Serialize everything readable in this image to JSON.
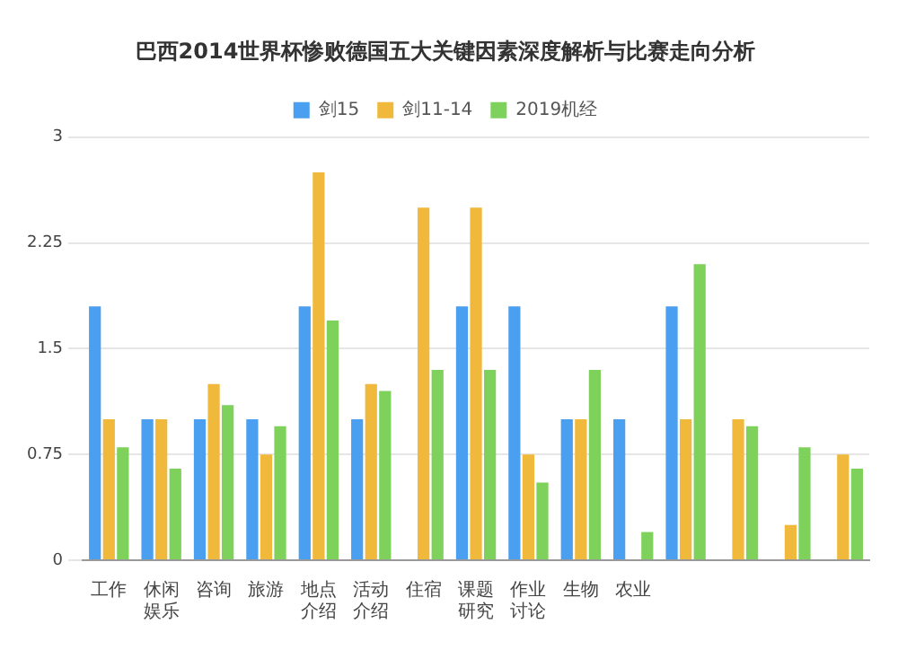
{
  "chart_data": {
    "type": "bar",
    "title": "巴西2014世界杯惨败德国五大关键因素深度解析与比赛走向分析",
    "categories": [
      "工作",
      "休闲娱乐",
      "咨询",
      "旅游",
      "地点介绍",
      "活动介绍",
      "住宿",
      "课题研究",
      "作业讨论",
      "生物",
      "农业",
      null,
      null,
      null,
      null
    ],
    "series": [
      {
        "name": "剑15",
        "color": "#4a9ff0",
        "values": [
          1.8,
          1.0,
          1.0,
          1.0,
          1.8,
          1.0,
          null,
          1.8,
          1.8,
          1.0,
          1.0,
          1.8,
          null,
          null,
          null
        ]
      },
      {
        "name": "剑11-14",
        "color": "#f0b93c",
        "values": [
          1.0,
          1.0,
          1.25,
          0.75,
          2.75,
          1.25,
          2.5,
          2.5,
          0.75,
          1.0,
          null,
          1.0,
          1.0,
          0.25,
          0.75
        ]
      },
      {
        "name": "2019机经",
        "color": "#7ed15a",
        "values": [
          0.8,
          0.65,
          1.1,
          0.95,
          1.7,
          1.2,
          1.35,
          1.35,
          0.55,
          1.35,
          0.2,
          2.1,
          0.95,
          0.8,
          0.65
        ]
      }
    ],
    "ylim": [
      0,
      3
    ],
    "yticks": [
      0,
      0.75,
      1.5,
      2.25,
      3
    ],
    "grid": "y",
    "legend": "top"
  }
}
